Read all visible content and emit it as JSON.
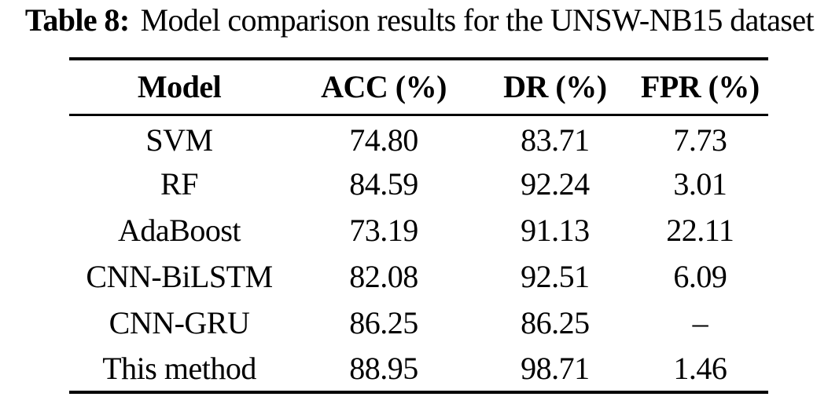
{
  "caption": {
    "label": "Table 8:",
    "text": "Model comparison results for the UNSW-NB15 dataset"
  },
  "table": {
    "columns": [
      "Model",
      "ACC (%)",
      "DR (%)",
      "FPR (%)"
    ],
    "rows": [
      [
        "SVM",
        "74.80",
        "83.71",
        "7.73"
      ],
      [
        "RF",
        "84.59",
        "92.24",
        "3.01"
      ],
      [
        "AdaBoost",
        "73.19",
        "91.13",
        "22.11"
      ],
      [
        "CNN-BiLSTM",
        "82.08",
        "92.51",
        "6.09"
      ],
      [
        "CNN-GRU",
        "86.25",
        "86.25",
        "–"
      ],
      [
        "This method",
        "88.95",
        "98.71",
        "1.46"
      ]
    ]
  },
  "colors": {
    "text": "#000000",
    "background": "#ffffff",
    "rule": "#000000"
  }
}
